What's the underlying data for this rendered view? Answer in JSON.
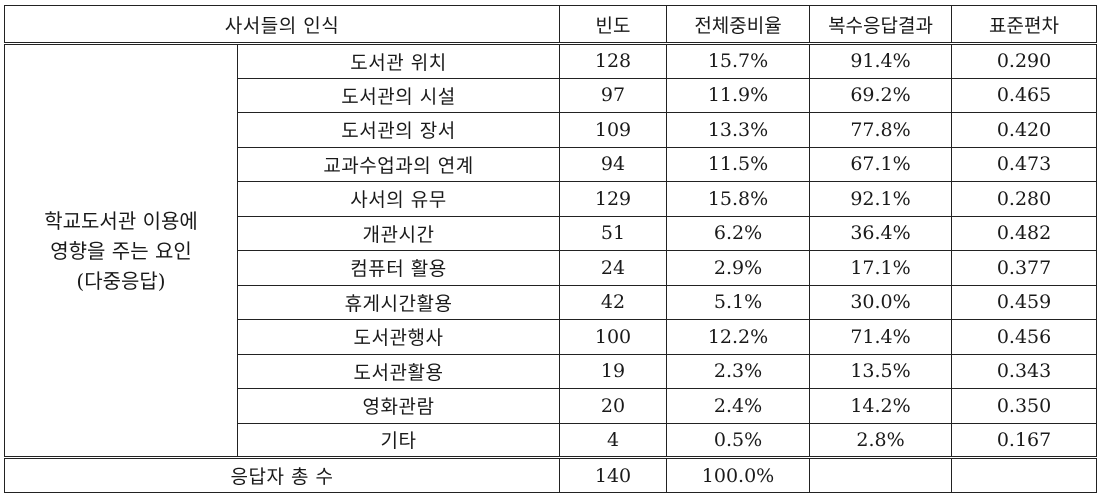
{
  "table": {
    "headers": {
      "perception": "사서들의 인식",
      "frequency": "빈도",
      "ratio": "전체중비율",
      "multi": "복수응답결과",
      "sd": "표준편차"
    },
    "group_label_lines": [
      "학교도서관 이용에",
      "영향을 주는 요인",
      "(다중응답)"
    ],
    "rows": [
      {
        "item": "도서관 위치",
        "frequency": "128",
        "ratio": "15.7%",
        "multi": "91.4%",
        "sd": "0.290"
      },
      {
        "item": "도서관의 시설",
        "frequency": "97",
        "ratio": "11.9%",
        "multi": "69.2%",
        "sd": "0.465"
      },
      {
        "item": "도서관의 장서",
        "frequency": "109",
        "ratio": "13.3%",
        "multi": "77.8%",
        "sd": "0.420"
      },
      {
        "item": "교과수업과의 연계",
        "frequency": "94",
        "ratio": "11.5%",
        "multi": "67.1%",
        "sd": "0.473"
      },
      {
        "item": "사서의 유무",
        "frequency": "129",
        "ratio": "15.8%",
        "multi": "92.1%",
        "sd": "0.280"
      },
      {
        "item": "개관시간",
        "frequency": "51",
        "ratio": "6.2%",
        "multi": "36.4%",
        "sd": "0.482"
      },
      {
        "item": "컴퓨터 활용",
        "frequency": "24",
        "ratio": "2.9%",
        "multi": "17.1%",
        "sd": "0.377"
      },
      {
        "item": "휴게시간활용",
        "frequency": "42",
        "ratio": "5.1%",
        "multi": "30.0%",
        "sd": "0.459"
      },
      {
        "item": "도서관행사",
        "frequency": "100",
        "ratio": "12.2%",
        "multi": "71.4%",
        "sd": "0.456"
      },
      {
        "item": "도서관활용",
        "frequency": "19",
        "ratio": "2.3%",
        "multi": "13.5%",
        "sd": "0.343"
      },
      {
        "item": "영화관람",
        "frequency": "20",
        "ratio": "2.4%",
        "multi": "14.2%",
        "sd": "0.350"
      },
      {
        "item": "기타",
        "frequency": "4",
        "ratio": "0.5%",
        "multi": "2.8%",
        "sd": "0.167"
      }
    ],
    "total": {
      "label": "응답자 총 수",
      "frequency": "140",
      "ratio": "100.0%",
      "multi": "",
      "sd": ""
    }
  }
}
